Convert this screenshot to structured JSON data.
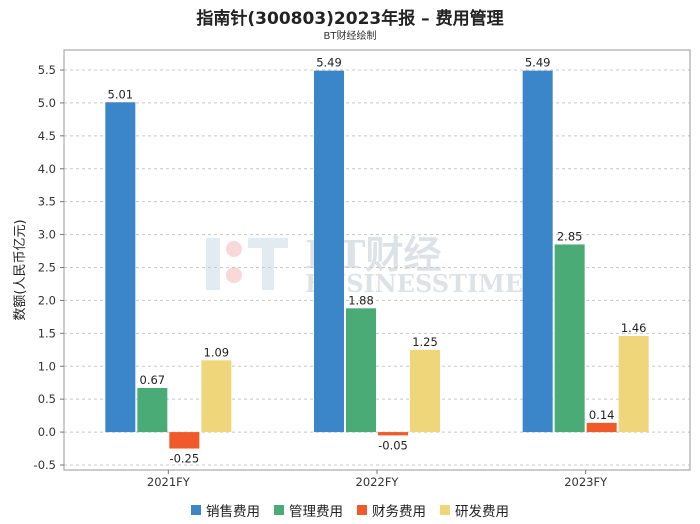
{
  "title": "指南针(300803)2023年报 – 费用管理",
  "subtitle": "BT财经绘制",
  "watermark": {
    "logo_text": "BT财经",
    "tagline": "BUSINESSTIMES"
  },
  "chart_data": {
    "type": "bar",
    "categories": [
      "2021FY",
      "2022FY",
      "2023FY"
    ],
    "ylabel": "数额(人民币亿元)",
    "xlabel": "",
    "ylim": [
      -0.5,
      5.5
    ],
    "yticks": [
      "-0.5",
      "0.0",
      "0.5",
      "1.0",
      "1.5",
      "2.0",
      "2.5",
      "3.0",
      "3.5",
      "4.0",
      "4.5",
      "5.0",
      "5.5"
    ],
    "grid": true,
    "legend_position": "bottom",
    "series": [
      {
        "name": "销售费用",
        "color": "#3a86c8",
        "values": [
          5.01,
          5.49,
          5.49
        ],
        "labels": [
          "5.01",
          "5.49",
          "5.49"
        ]
      },
      {
        "name": "管理费用",
        "color": "#4aab77",
        "values": [
          0.67,
          1.88,
          2.85
        ],
        "labels": [
          "0.67",
          "1.88",
          "2.85"
        ]
      },
      {
        "name": "财务费用",
        "color": "#f05a28",
        "values": [
          -0.25,
          -0.05,
          0.14
        ],
        "labels": [
          "-0.25",
          "-0.05",
          "0.14"
        ]
      },
      {
        "name": "研发费用",
        "color": "#efd67a",
        "values": [
          1.09,
          1.25,
          1.46
        ],
        "labels": [
          "1.09",
          "1.25",
          "1.46"
        ]
      }
    ]
  }
}
